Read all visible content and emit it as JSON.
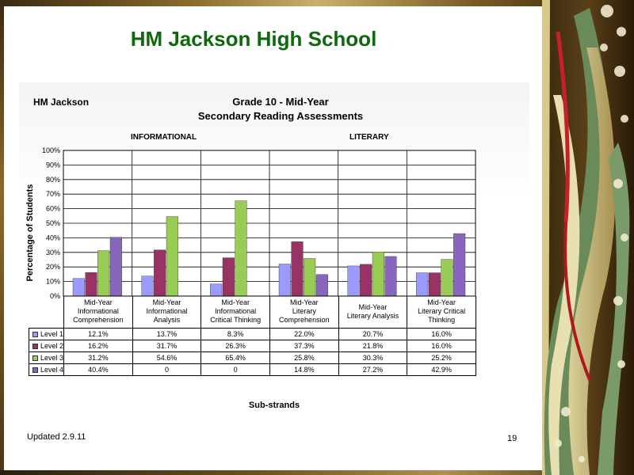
{
  "slide": {
    "title": "HM Jackson High School",
    "updated": "Updated  2.9.11",
    "page_number": "19"
  },
  "chart_data": {
    "type": "bar",
    "school_label": "HM Jackson",
    "title": "Grade 10 - Mid-Year",
    "subtitle": "Secondary Reading Assessments",
    "group_labels": [
      "INFORMATIONAL",
      "LITERARY"
    ],
    "ylabel": "Percentage of Students",
    "xlabel": "Sub-strands",
    "ylim": [
      0,
      100
    ],
    "y_ticks": [
      "0%",
      "10%",
      "20%",
      "30%",
      "40%",
      "50%",
      "60%",
      "70%",
      "80%",
      "90%",
      "100%"
    ],
    "grid": true,
    "categories": [
      [
        "Mid-Year",
        "Informational",
        "Comprehension"
      ],
      [
        "Mid-Year",
        "Informational",
        "Analysis"
      ],
      [
        "Mid-Year",
        "Informational",
        "Critical Thinking"
      ],
      [
        "Mid-Year",
        "Literary",
        "Comprehension"
      ],
      [
        "Mid-Year",
        "Literary Analysis"
      ],
      [
        "Mid-Year",
        "Literary Critical",
        "Thinking"
      ]
    ],
    "series": [
      {
        "name": "Level 1",
        "color": "#9a9aff",
        "values": [
          12.1,
          13.7,
          8.3,
          22.0,
          20.7,
          16.0
        ],
        "labels": [
          "12.1%",
          "13.7%",
          "8.3%",
          "22.0%",
          "20.7%",
          "16.0%"
        ]
      },
      {
        "name": "Level 2",
        "color": "#993366",
        "values": [
          16.2,
          31.7,
          26.3,
          37.3,
          21.8,
          16.0
        ],
        "labels": [
          "16.2%",
          "31.7%",
          "26.3%",
          "37.3%",
          "21.8%",
          "16.0%"
        ]
      },
      {
        "name": "Level 3",
        "color": "#99cc55",
        "values": [
          31.2,
          54.6,
          65.4,
          25.8,
          30.3,
          25.2
        ],
        "labels": [
          "31.2%",
          "54.6%",
          "65.4%",
          "25.8%",
          "30.3%",
          "25.2%"
        ]
      },
      {
        "name": "Level 4",
        "color": "#8866bb",
        "values": [
          40.4,
          0,
          0,
          14.8,
          27.2,
          42.9
        ],
        "labels": [
          "40.4%",
          "0",
          "0",
          "14.8%",
          "27.2%",
          "42.9%"
        ]
      }
    ]
  }
}
